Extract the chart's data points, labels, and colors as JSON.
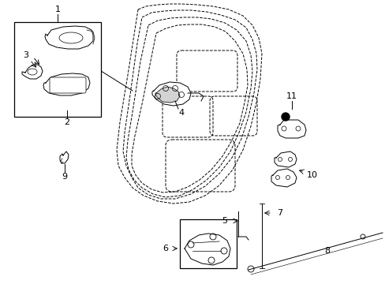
{
  "bg_color": "#ffffff",
  "line_color": "#000000",
  "fig_width": 4.89,
  "fig_height": 3.6,
  "dpi": 100
}
